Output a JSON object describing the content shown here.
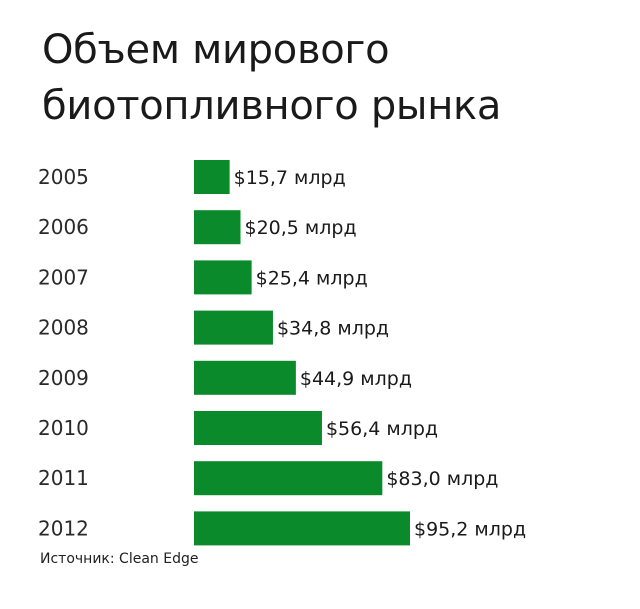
{
  "title": "Объем мирового\nбиотопливного рынка",
  "source": "Источник: Clean Edge",
  "colors": {
    "bar": "#0a8a2a",
    "text": "#1a1a1a"
  },
  "chart_data": {
    "type": "bar",
    "orientation": "horizontal",
    "categories": [
      "2005",
      "2006",
      "2007",
      "2008",
      "2009",
      "2010",
      "2011",
      "2012"
    ],
    "values": [
      15.7,
      20.5,
      25.4,
      34.8,
      44.9,
      56.4,
      83.0,
      95.2
    ],
    "data_labels": [
      "$15,7 млрд",
      "$20,5 млрд",
      "$25,4 млрд",
      "$34,8 млрд",
      "$44,9 млрд",
      "$56,4 млрд",
      "$83,0 млрд",
      "$95,2 млрд"
    ],
    "grid": false,
    "legend": "none"
  }
}
